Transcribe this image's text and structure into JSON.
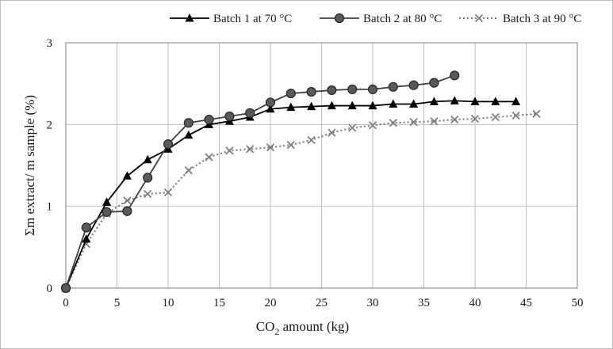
{
  "chart_data": {
    "type": "line",
    "title": "",
    "xlabel_main": "CO",
    "xlabel_sub": "2",
    "xlabel_rest": " amount (kg)",
    "ylabel": "Σm extract/ m sample (%)",
    "xlim": [
      0,
      50
    ],
    "ylim": [
      0,
      3
    ],
    "xticks": [
      "0",
      "5",
      "10",
      "15",
      "20",
      "25",
      "30",
      "35",
      "40",
      "45",
      "50"
    ],
    "yticks": [
      "0",
      "1",
      "2",
      "3"
    ],
    "grid": true,
    "legend_position": "top",
    "series": [
      {
        "name": "Batch 1 at 70 °C",
        "marker": "triangle",
        "line": "solid",
        "color": "#000000",
        "x": [
          0,
          2,
          4,
          6,
          8,
          10,
          12,
          14,
          16,
          18,
          20,
          22,
          24,
          26,
          28,
          30,
          32,
          34,
          36,
          38,
          40,
          42,
          44
        ],
        "y": [
          0,
          0.6,
          1.05,
          1.37,
          1.57,
          1.7,
          1.87,
          2.0,
          2.04,
          2.09,
          2.19,
          2.21,
          2.22,
          2.23,
          2.23,
          2.23,
          2.25,
          2.25,
          2.28,
          2.29,
          2.28,
          2.28,
          2.28
        ]
      },
      {
        "name": "Batch 2 at 80 °C",
        "marker": "circle",
        "line": "solid",
        "color": "#404040",
        "x": [
          0,
          2,
          4,
          6,
          8,
          10,
          12,
          14,
          16,
          18,
          20,
          22,
          24,
          26,
          28,
          30,
          32,
          34,
          36,
          38
        ],
        "y": [
          0,
          0.74,
          0.93,
          0.94,
          1.35,
          1.76,
          2.02,
          2.06,
          2.1,
          2.14,
          2.27,
          2.38,
          2.4,
          2.42,
          2.43,
          2.43,
          2.46,
          2.48,
          2.51,
          2.6
        ]
      },
      {
        "name": "Batch 3 at 90 °C",
        "marker": "x",
        "line": "dotted",
        "color": "#7f7f7f",
        "x": [
          0,
          2,
          4,
          6,
          8,
          10,
          12,
          14,
          16,
          18,
          20,
          22,
          24,
          26,
          28,
          30,
          32,
          34,
          36,
          38,
          40,
          42,
          44,
          46
        ],
        "y": [
          0,
          0.54,
          0.91,
          1.07,
          1.15,
          1.17,
          1.44,
          1.6,
          1.68,
          1.7,
          1.72,
          1.75,
          1.81,
          1.9,
          1.96,
          1.99,
          2.02,
          2.03,
          2.04,
          2.06,
          2.07,
          2.09,
          2.11,
          2.13
        ]
      }
    ]
  }
}
